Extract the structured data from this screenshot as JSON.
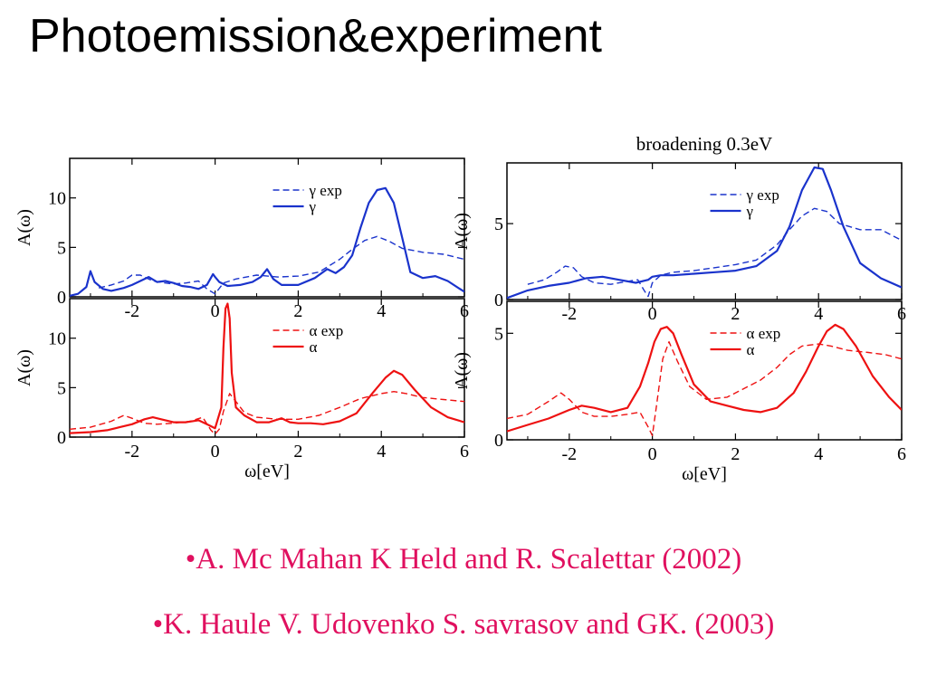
{
  "slide": {
    "title": "Photoemission&experiment",
    "references": [
      "•A. Mc Mahan K Held and R. Scalettar (2002)",
      "•K. Haule V. Udovenko S. savrasov and GK. (2003)"
    ]
  },
  "colors": {
    "gamma": "#1a33cc",
    "alpha": "#ee1111",
    "axes": "#000000",
    "references": "#e0105f"
  },
  "chart_data": [
    {
      "type": "line",
      "panel": "left-top",
      "xlabel": "",
      "ylabel": "A(ω)",
      "xlim": [
        -3.5,
        6
      ],
      "ylim": [
        0,
        14
      ],
      "xticks": [
        -2,
        0,
        2,
        4,
        6
      ],
      "yticks": [
        0,
        5,
        10
      ],
      "xtick_labels": [
        "-2",
        "0",
        "2",
        "4",
        "6"
      ],
      "ytick_labels": [
        "0",
        "5",
        "10"
      ],
      "legend_position": "top-right",
      "series": [
        {
          "name": "γ exp",
          "style": "dashed",
          "color": "#1a33cc",
          "x": [
            -2.8,
            -2.5,
            -2.2,
            -2.0,
            -1.8,
            -1.5,
            -1.2,
            -1.0,
            -0.7,
            -0.4,
            -0.2,
            0.0,
            0.2,
            0.5,
            1.0,
            1.5,
            2.0,
            2.5,
            3.0,
            3.3,
            3.6,
            3.9,
            4.2,
            4.5,
            5.0,
            5.5,
            6.0
          ],
          "y": [
            0.9,
            1.2,
            1.6,
            2.2,
            2.2,
            1.6,
            1.4,
            1.3,
            1.4,
            1.6,
            0.8,
            0.3,
            1.4,
            1.8,
            2.2,
            2.0,
            2.1,
            2.5,
            3.8,
            4.8,
            5.7,
            6.1,
            5.6,
            4.9,
            4.5,
            4.3,
            3.8
          ]
        },
        {
          "name": "γ",
          "style": "solid",
          "color": "#1a33cc",
          "x": [
            -3.5,
            -3.3,
            -3.1,
            -3.0,
            -2.9,
            -2.7,
            -2.5,
            -2.2,
            -2.0,
            -1.8,
            -1.6,
            -1.4,
            -1.2,
            -1.0,
            -0.8,
            -0.6,
            -0.4,
            -0.2,
            -0.05,
            0.0,
            0.1,
            0.3,
            0.6,
            0.9,
            1.1,
            1.25,
            1.4,
            1.6,
            2.0,
            2.4,
            2.7,
            2.9,
            3.1,
            3.3,
            3.5,
            3.7,
            3.9,
            4.1,
            4.3,
            4.5,
            4.7,
            5.0,
            5.3,
            5.6,
            6.0
          ],
          "y": [
            0.1,
            0.3,
            1.0,
            2.6,
            1.5,
            0.8,
            0.6,
            0.9,
            1.2,
            1.6,
            2.0,
            1.5,
            1.6,
            1.4,
            1.1,
            1.0,
            0.8,
            1.2,
            2.3,
            2.0,
            1.5,
            1.1,
            1.2,
            1.5,
            2.0,
            2.8,
            1.8,
            1.2,
            1.2,
            1.9,
            2.8,
            2.4,
            3.0,
            4.2,
            7.0,
            9.5,
            10.8,
            11.0,
            9.5,
            6.0,
            2.5,
            1.9,
            2.1,
            1.6,
            0.5
          ]
        }
      ]
    },
    {
      "type": "line",
      "panel": "left-bottom",
      "xlabel": "ω[eV]",
      "ylabel": "A(ω)",
      "xlim": [
        -3.5,
        6
      ],
      "ylim": [
        0,
        14
      ],
      "xticks": [
        -2,
        0,
        2,
        4,
        6
      ],
      "yticks": [
        0,
        5,
        10
      ],
      "xtick_labels": [
        "-2",
        "0",
        "2",
        "4",
        "6"
      ],
      "ytick_labels": [
        "0",
        "5",
        "10"
      ],
      "legend_position": "top-right",
      "series": [
        {
          "name": "α exp",
          "style": "dashed",
          "color": "#ee1111",
          "x": [
            -3.5,
            -3.0,
            -2.5,
            -2.2,
            -2.0,
            -1.7,
            -1.4,
            -1.0,
            -0.6,
            -0.3,
            -0.1,
            0.0,
            0.1,
            0.2,
            0.35,
            0.5,
            0.7,
            1.0,
            1.5,
            2.0,
            2.5,
            3.0,
            3.5,
            4.0,
            4.3,
            4.6,
            5.0,
            5.5,
            6.0
          ],
          "y": [
            0.8,
            1.0,
            1.6,
            2.2,
            1.9,
            1.4,
            1.3,
            1.4,
            1.6,
            2.0,
            0.7,
            0.3,
            0.8,
            2.6,
            4.4,
            3.6,
            2.5,
            2.0,
            1.8,
            1.8,
            2.2,
            3.0,
            3.9,
            4.4,
            4.6,
            4.4,
            4.0,
            3.8,
            3.6
          ]
        },
        {
          "name": "α",
          "style": "solid",
          "color": "#ee1111",
          "x": [
            -3.5,
            -3.0,
            -2.6,
            -2.3,
            -2.0,
            -1.7,
            -1.5,
            -1.3,
            -1.0,
            -0.7,
            -0.4,
            -0.2,
            0.0,
            0.15,
            0.2,
            0.25,
            0.3,
            0.35,
            0.4,
            0.5,
            0.7,
            1.0,
            1.3,
            1.6,
            1.8,
            2.0,
            2.3,
            2.6,
            3.0,
            3.4,
            3.8,
            4.1,
            4.3,
            4.5,
            4.8,
            5.2,
            5.6,
            6.0
          ],
          "y": [
            0.4,
            0.5,
            0.7,
            1.0,
            1.3,
            1.8,
            2.0,
            1.8,
            1.5,
            1.5,
            1.7,
            1.3,
            0.9,
            3.0,
            9.0,
            13.0,
            13.5,
            12.0,
            6.5,
            3.0,
            2.2,
            1.5,
            1.5,
            1.9,
            1.5,
            1.4,
            1.4,
            1.3,
            1.6,
            2.4,
            4.5,
            6.0,
            6.7,
            6.3,
            4.8,
            3.0,
            2.0,
            1.5
          ]
        }
      ]
    },
    {
      "type": "line",
      "panel": "right-top",
      "title": "broadening 0.3eV",
      "xlabel": "",
      "ylabel": "A(ω)",
      "xlim": [
        -3.5,
        6
      ],
      "ylim": [
        0,
        9
      ],
      "xticks": [
        -2,
        0,
        2,
        4,
        6
      ],
      "yticks": [
        0,
        5
      ],
      "xtick_labels": [
        "-2",
        "0",
        "2",
        "4",
        "6"
      ],
      "ytick_labels": [
        "0",
        "5"
      ],
      "legend_position": "top-right",
      "series": [
        {
          "name": "γ exp",
          "style": "dashed",
          "color": "#1a33cc",
          "x": [
            -3.0,
            -2.6,
            -2.3,
            -2.1,
            -1.9,
            -1.7,
            -1.4,
            -1.0,
            -0.6,
            -0.35,
            -0.2,
            -0.1,
            0.0,
            0.2,
            0.5,
            1.0,
            1.5,
            2.0,
            2.5,
            3.0,
            3.3,
            3.6,
            3.9,
            4.2,
            4.5,
            5.0,
            5.5,
            6.0
          ],
          "y": [
            1.0,
            1.3,
            1.8,
            2.2,
            2.1,
            1.5,
            1.1,
            1.0,
            1.2,
            1.3,
            0.6,
            0.2,
            1.1,
            1.6,
            1.8,
            1.9,
            2.1,
            2.3,
            2.6,
            3.6,
            4.6,
            5.5,
            6.0,
            5.8,
            5.0,
            4.6,
            4.6,
            3.9
          ]
        },
        {
          "name": "γ",
          "style": "solid",
          "color": "#1a33cc",
          "x": [
            -3.5,
            -3.0,
            -2.5,
            -2.0,
            -1.6,
            -1.2,
            -0.8,
            -0.4,
            -0.1,
            0.0,
            0.2,
            0.5,
            1.0,
            1.5,
            2.0,
            2.5,
            3.0,
            3.3,
            3.6,
            3.9,
            4.1,
            4.3,
            4.6,
            5.0,
            5.5,
            6.0
          ],
          "y": [
            0.1,
            0.6,
            0.9,
            1.1,
            1.4,
            1.5,
            1.3,
            1.1,
            1.3,
            1.5,
            1.6,
            1.6,
            1.7,
            1.8,
            1.9,
            2.2,
            3.2,
            4.8,
            7.2,
            8.7,
            8.6,
            7.2,
            4.8,
            2.4,
            1.4,
            0.8
          ]
        }
      ]
    },
    {
      "type": "line",
      "panel": "right-bottom",
      "xlabel": "ω[eV]",
      "ylabel": "A(ω)",
      "xlim": [
        -3.5,
        6
      ],
      "ylim": [
        0,
        6.5
      ],
      "xticks": [
        -2,
        0,
        2,
        4,
        6
      ],
      "yticks": [
        0,
        5
      ],
      "xtick_labels": [
        "-2",
        "0",
        "2",
        "4",
        "6"
      ],
      "ytick_labels": [
        "0",
        "5"
      ],
      "legend_position": "top-right",
      "series": [
        {
          "name": "α exp",
          "style": "dashed",
          "color": "#ee1111",
          "x": [
            -3.5,
            -3.0,
            -2.5,
            -2.2,
            -2.0,
            -1.7,
            -1.4,
            -1.0,
            -0.6,
            -0.3,
            -0.1,
            0.0,
            0.1,
            0.25,
            0.4,
            0.6,
            0.9,
            1.3,
            1.8,
            2.2,
            2.6,
            3.0,
            3.3,
            3.6,
            4.0,
            4.3,
            4.7,
            5.2,
            5.6,
            6.0
          ],
          "y": [
            1.0,
            1.2,
            1.8,
            2.2,
            1.9,
            1.3,
            1.1,
            1.1,
            1.2,
            1.3,
            0.6,
            0.2,
            1.6,
            3.8,
            4.6,
            3.7,
            2.5,
            1.9,
            2.0,
            2.4,
            2.8,
            3.4,
            4.0,
            4.4,
            4.5,
            4.4,
            4.2,
            4.1,
            4.0,
            3.8
          ]
        },
        {
          "name": "α",
          "style": "solid",
          "color": "#ee1111",
          "x": [
            -3.5,
            -3.0,
            -2.5,
            -2.0,
            -1.7,
            -1.4,
            -1.0,
            -0.6,
            -0.3,
            -0.1,
            0.05,
            0.2,
            0.35,
            0.5,
            0.7,
            1.0,
            1.4,
            1.8,
            2.2,
            2.6,
            3.0,
            3.4,
            3.7,
            4.0,
            4.2,
            4.4,
            4.6,
            4.9,
            5.3,
            5.7,
            6.0
          ],
          "y": [
            0.4,
            0.7,
            1.0,
            1.4,
            1.6,
            1.5,
            1.3,
            1.5,
            2.5,
            3.6,
            4.6,
            5.2,
            5.3,
            5.0,
            4.0,
            2.6,
            1.8,
            1.6,
            1.4,
            1.3,
            1.5,
            2.2,
            3.2,
            4.4,
            5.1,
            5.4,
            5.2,
            4.4,
            3.0,
            2.0,
            1.4
          ]
        }
      ]
    }
  ]
}
